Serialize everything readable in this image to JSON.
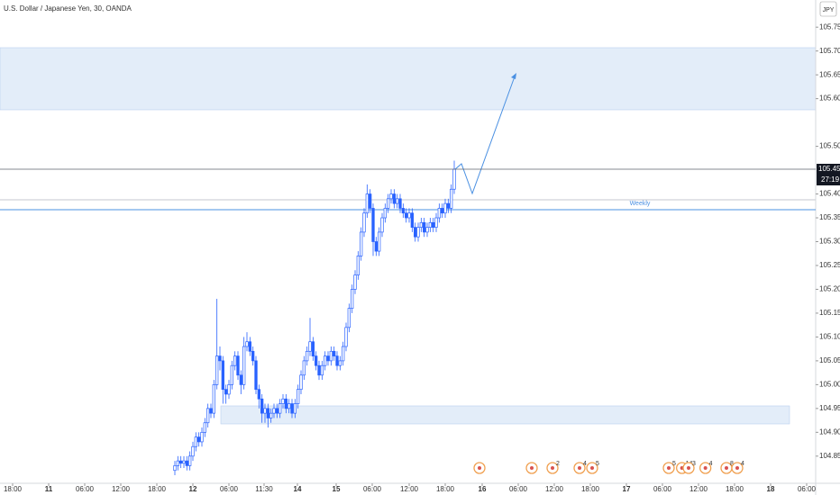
{
  "chart_data": {
    "type": "candlestick",
    "title": "U.S. Dollar / Japanese Yen, 30, OANDA",
    "currency": "JPY",
    "color": "#2962ff",
    "x": [
      27,
      27.5,
      28,
      28.5,
      29,
      29.5,
      30,
      30.5,
      31,
      31.5,
      32,
      32.5,
      33,
      33.5,
      34,
      34.5,
      35,
      35.5,
      36,
      36.5,
      37,
      37.5,
      38,
      38.5,
      39,
      39.5,
      40,
      40.5,
      41,
      41.5,
      42,
      42.5,
      43,
      43.5,
      44,
      44.5,
      45,
      45.5,
      46,
      46.5,
      47,
      47.5,
      48,
      48.5,
      49,
      49.5,
      50,
      50.5,
      51,
      51.5,
      52,
      52.5,
      53,
      53.5,
      54,
      54.5,
      55,
      55.5,
      56,
      56.5,
      57,
      57.5,
      58,
      58.5,
      59,
      59.5,
      60,
      60.5,
      61,
      61.5,
      62,
      62.5,
      63,
      63.5,
      64,
      64.5,
      65,
      65.5,
      66,
      66.5,
      67,
      67.5,
      68,
      68.5,
      69,
      69.5,
      70,
      70.5,
      71,
      71.5,
      72,
      72.5,
      73,
      73.5
    ],
    "open": [
      104.82,
      104.83,
      104.84,
      104.835,
      104.84,
      104.83,
      104.85,
      104.87,
      104.89,
      104.88,
      104.9,
      104.92,
      104.95,
      104.94,
      105.0,
      105.06,
      105.05,
      104.99,
      104.98,
      105.0,
      105.04,
      105.06,
      105.02,
      105.0,
      105.08,
      105.09,
      105.07,
      105.05,
      104.99,
      104.97,
      104.94,
      104.95,
      104.93,
      104.94,
      104.95,
      104.94,
      104.96,
      104.97,
      104.95,
      104.96,
      104.94,
      104.96,
      104.99,
      105.02,
      105.05,
      105.07,
      105.09,
      105.06,
      105.04,
      105.02,
      105.04,
      105.06,
      105.05,
      105.07,
      105.06,
      105.04,
      105.05,
      105.08,
      105.12,
      105.16,
      105.2,
      105.23,
      105.27,
      105.32,
      105.36,
      105.4,
      105.37,
      105.3,
      105.28,
      105.32,
      105.35,
      105.37,
      105.39,
      105.4,
      105.38,
      105.39,
      105.37,
      105.36,
      105.35,
      105.36,
      105.33,
      105.31,
      105.33,
      105.34,
      105.32,
      105.33,
      105.34,
      105.33,
      105.35,
      105.37,
      105.36,
      105.38,
      105.37,
      105.41
    ],
    "high": [
      104.84,
      104.85,
      104.85,
      104.85,
      104.85,
      104.86,
      104.88,
      104.9,
      104.9,
      104.91,
      104.93,
      104.96,
      104.96,
      105.01,
      105.18,
      105.08,
      105.06,
      105.0,
      105.01,
      105.05,
      105.07,
      105.07,
      105.03,
      105.1,
      105.11,
      105.1,
      105.08,
      105.06,
      105.0,
      104.98,
      104.96,
      104.96,
      104.95,
      104.96,
      104.96,
      104.97,
      104.98,
      104.98,
      104.97,
      104.97,
      104.97,
      105.0,
      105.03,
      105.06,
      105.08,
      105.14,
      105.1,
      105.07,
      105.05,
      105.05,
      105.07,
      105.07,
      105.08,
      105.08,
      105.07,
      105.06,
      105.09,
      105.13,
      105.17,
      105.21,
      105.24,
      105.28,
      105.33,
      105.37,
      105.42,
      105.41,
      105.38,
      105.31,
      105.33,
      105.36,
      105.38,
      105.4,
      105.41,
      105.41,
      105.4,
      105.4,
      105.38,
      105.37,
      105.37,
      105.37,
      105.34,
      105.34,
      105.35,
      105.35,
      105.34,
      105.35,
      105.35,
      105.36,
      105.38,
      105.38,
      105.39,
      105.39,
      105.42,
      105.47
    ],
    "low": [
      104.81,
      104.82,
      104.825,
      104.825,
      104.82,
      104.82,
      104.84,
      104.86,
      104.87,
      104.87,
      104.89,
      104.91,
      104.93,
      104.93,
      104.99,
      105.03,
      104.96,
      104.96,
      104.97,
      104.99,
      105.03,
      105.01,
      104.98,
      104.99,
      105.07,
      105.06,
      105.04,
      104.98,
      104.95,
      104.92,
      104.92,
      104.91,
      104.92,
      104.93,
      104.93,
      104.93,
      104.95,
      104.94,
      104.94,
      104.93,
      104.93,
      104.95,
      104.98,
      105.01,
      105.04,
      105.06,
      105.05,
      105.03,
      105.01,
      105.01,
      105.03,
      105.04,
      105.04,
      105.05,
      105.03,
      105.03,
      105.04,
      105.07,
      105.11,
      105.15,
      105.19,
      105.22,
      105.26,
      105.31,
      105.35,
      105.36,
      105.27,
      105.27,
      105.27,
      105.31,
      105.34,
      105.36,
      105.38,
      105.37,
      105.37,
      105.36,
      105.35,
      105.34,
      105.34,
      105.32,
      105.3,
      105.3,
      105.32,
      105.31,
      105.31,
      105.32,
      105.32,
      105.32,
      105.34,
      105.35,
      105.35,
      105.36,
      105.36,
      105.4
    ],
    "close": [
      104.83,
      104.84,
      104.835,
      104.84,
      104.83,
      104.85,
      104.87,
      104.89,
      104.88,
      104.9,
      104.92,
      104.95,
      104.94,
      105.0,
      105.06,
      105.05,
      104.99,
      104.98,
      105.0,
      105.04,
      105.06,
      105.02,
      105.0,
      105.08,
      105.09,
      105.07,
      105.05,
      104.99,
      104.97,
      104.94,
      104.95,
      104.93,
      104.94,
      104.95,
      104.94,
      104.96,
      104.97,
      104.95,
      104.96,
      104.94,
      104.96,
      104.99,
      105.02,
      105.05,
      105.07,
      105.09,
      105.06,
      105.04,
      105.02,
      105.04,
      105.06,
      105.05,
      105.07,
      105.06,
      105.04,
      105.05,
      105.08,
      105.12,
      105.16,
      105.2,
      105.23,
      105.27,
      105.32,
      105.36,
      105.4,
      105.37,
      105.3,
      105.28,
      105.32,
      105.35,
      105.37,
      105.39,
      105.4,
      105.38,
      105.39,
      105.37,
      105.36,
      105.35,
      105.36,
      105.33,
      105.31,
      105.33,
      105.34,
      105.32,
      105.33,
      105.34,
      105.33,
      105.35,
      105.37,
      105.36,
      105.38,
      105.37,
      105.41,
      105.452
    ],
    "ylim": [
      104.793,
      105.807
    ],
    "yticks": [
      {
        "value": 105.75,
        "label": "105.750"
      },
      {
        "value": 105.7,
        "label": "105.700"
      },
      {
        "value": 105.65,
        "label": "105.650"
      },
      {
        "value": 105.6,
        "label": "105.600"
      },
      {
        "value": 105.5,
        "label": "105.500"
      },
      {
        "value": 105.4,
        "label": "105.400"
      },
      {
        "value": 105.35,
        "label": "105.350"
      },
      {
        "value": 105.3,
        "label": "105.300"
      },
      {
        "value": 105.25,
        "label": "105.250"
      },
      {
        "value": 105.2,
        "label": "105.200"
      },
      {
        "value": 105.15,
        "label": "105.150"
      },
      {
        "value": 105.1,
        "label": "105.100"
      },
      {
        "value": 105.05,
        "label": "105.050"
      },
      {
        "value": 105,
        "label": "105.000"
      },
      {
        "value": 104.95,
        "label": "104.950"
      },
      {
        "value": 104.9,
        "label": "104.900"
      },
      {
        "value": 104.85,
        "label": "104.850"
      }
    ],
    "xlim": [
      -2.1,
      133.65
    ],
    "xticks": [
      {
        "value": 0,
        "label": "18:00"
      },
      {
        "value": 6,
        "label": "11"
      },
      {
        "value": 12,
        "label": "06:00"
      },
      {
        "value": 18,
        "label": "12:00"
      },
      {
        "value": 24,
        "label": "18:00"
      },
      {
        "value": 30,
        "label": "12"
      },
      {
        "value": 36,
        "label": "06:00"
      },
      {
        "value": 41.85,
        "label": "11:30"
      },
      {
        "value": 47.4,
        "label": "14"
      },
      {
        "value": 53.85,
        "label": "15"
      },
      {
        "value": 59.85,
        "label": "06:00"
      },
      {
        "value": 66,
        "label": "12:00"
      },
      {
        "value": 72,
        "label": "18:00"
      },
      {
        "value": 78.15,
        "label": "16"
      },
      {
        "value": 84.15,
        "label": "06:00"
      },
      {
        "value": 90.15,
        "label": "12:00"
      },
      {
        "value": 96.15,
        "label": "18:00"
      },
      {
        "value": 102.15,
        "label": "17"
      },
      {
        "value": 108.15,
        "label": "06:00"
      },
      {
        "value": 114.15,
        "label": "12:00"
      },
      {
        "value": 120.15,
        "label": "18:00"
      },
      {
        "value": 126.15,
        "label": "18"
      },
      {
        "value": 132.15,
        "label": "06:00"
      }
    ],
    "last_price": {
      "value": 105.452,
      "label": "105.452"
    },
    "countdown": "27:19",
    "weekly_level": {
      "value": 105.367,
      "label": "Weekly"
    },
    "events": {
      "x": [
        77.7,
        86.4,
        89.85,
        94.35,
        96.45,
        109.2,
        111.4,
        112.5,
        115.3,
        118.8,
        120.6
      ],
      "labels": [
        null,
        null,
        "2",
        "4",
        "5",
        "5",
        "14",
        "3",
        "4",
        "8",
        "4"
      ]
    }
  }
}
